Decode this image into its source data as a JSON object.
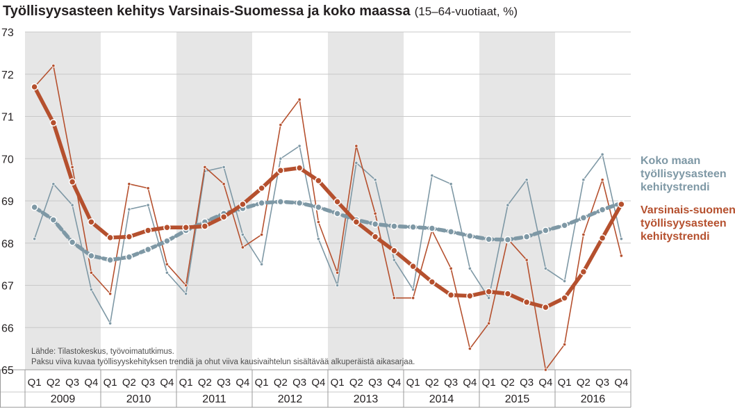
{
  "title": "Työllisyysasteen kehitys Varsinais-Suomessa ja koko maassa",
  "subtitle": "(15–64-vuotiaat, %)",
  "source_note": "Lähde: Tilastokeskus, työvoimatutkimus.",
  "explanation_note": "Paksu viiva kuvaa työllisyyskehityksen trendiä ja ohut viiva kausivaihtelun sisältävää alkuperäistä aikasarjaa.",
  "colors": {
    "whole_country": "#7e98a5",
    "varsinais_suomi": "#b5502e",
    "shade": "#e6e6e6",
    "grid": "#c8c8c8"
  },
  "chart_data": {
    "type": "line",
    "x": [
      "Q1",
      "Q2",
      "Q3",
      "Q4",
      "Q1",
      "Q2",
      "Q3",
      "Q4",
      "Q1",
      "Q2",
      "Q3",
      "Q4",
      "Q1",
      "Q2",
      "Q3",
      "Q4",
      "Q1",
      "Q2",
      "Q3",
      "Q4",
      "Q1",
      "Q2",
      "Q3",
      "Q4",
      "Q1",
      "Q2",
      "Q3",
      "Q4",
      "Q1",
      "Q2",
      "Q3",
      "Q4"
    ],
    "years": [
      "2009",
      "2010",
      "2011",
      "2012",
      "2013",
      "2014",
      "2015",
      "2016"
    ],
    "quarters": [
      "Q1",
      "Q2",
      "Q3",
      "Q4"
    ],
    "ylim": [
      65,
      73
    ],
    "yticks": [
      65,
      66,
      67,
      68,
      69,
      70,
      71,
      72,
      73
    ],
    "grid": true,
    "series": [
      {
        "key": "whole_original",
        "values": [
          68.1,
          69.4,
          68.9,
          66.9,
          66.1,
          68.8,
          68.9,
          67.3,
          66.8,
          69.7,
          69.8,
          68.2,
          67.5,
          70.0,
          70.3,
          68.1,
          67.0,
          69.9,
          69.5,
          67.6,
          66.9,
          69.6,
          69.4,
          67.4,
          66.7,
          68.9,
          69.5,
          67.4,
          67.1,
          69.5,
          70.1,
          68.1
        ]
      },
      {
        "key": "region_original",
        "values": [
          71.7,
          72.2,
          69.8,
          67.3,
          66.8,
          69.4,
          69.3,
          67.5,
          67.0,
          69.8,
          69.4,
          67.9,
          68.2,
          70.8,
          71.4,
          68.5,
          67.3,
          70.3,
          68.7,
          66.7,
          66.7,
          68.3,
          67.4,
          65.5,
          66.1,
          68.1,
          67.6,
          65.0,
          65.6,
          68.2,
          69.5,
          67.7
        ]
      },
      {
        "key": "whole_trend",
        "name": "Koko maan työllisyysasteen kehitystrendi",
        "label_lines": [
          "Koko maan",
          "työllisyysasteen",
          "kehitystrendi"
        ],
        "values": [
          68.85,
          68.55,
          68.02,
          67.7,
          67.6,
          67.67,
          67.85,
          68.05,
          68.3,
          68.5,
          68.7,
          68.82,
          68.95,
          68.98,
          68.95,
          68.85,
          68.7,
          68.55,
          68.45,
          68.4,
          68.38,
          68.35,
          68.27,
          68.17,
          68.09,
          68.08,
          68.15,
          68.3,
          68.42,
          68.6,
          68.79,
          68.95
        ]
      },
      {
        "key": "region_trend",
        "name": "Varsinais-suomen työllisyysasteen kehitystrendi",
        "label_lines": [
          "Varsinais-suomen",
          "työllisyysasteen",
          "kehitystrendi"
        ],
        "values": [
          71.7,
          70.85,
          69.45,
          68.5,
          68.13,
          68.15,
          68.3,
          68.37,
          68.37,
          68.4,
          68.62,
          68.92,
          69.3,
          69.72,
          69.78,
          69.48,
          68.98,
          68.5,
          68.15,
          67.82,
          67.45,
          67.08,
          66.77,
          66.75,
          66.85,
          66.8,
          66.6,
          66.48,
          66.7,
          67.32,
          68.12,
          68.92
        ]
      }
    ]
  }
}
